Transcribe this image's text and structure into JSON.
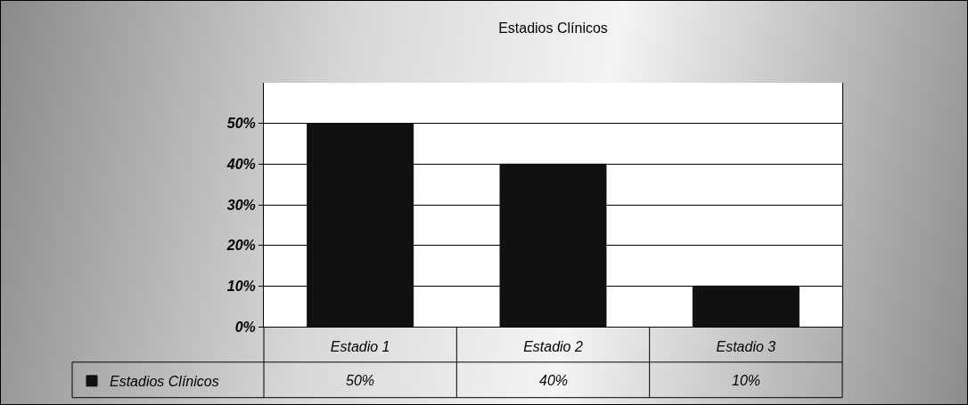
{
  "chart_data": {
    "type": "bar",
    "title": "Estadios Clínicos",
    "categories": [
      "Estadio 1",
      "Estadio 2",
      "Estadio 3"
    ],
    "series": [
      {
        "name": "Estadios Clínicos",
        "color": "#111111",
        "values": [
          50,
          40,
          10
        ]
      }
    ],
    "value_labels": [
      "50%",
      "40%",
      "10%"
    ],
    "ylim": [
      0,
      60
    ],
    "yticks": [
      {
        "value": 0,
        "label": "0%"
      },
      {
        "value": 10,
        "label": "10%"
      },
      {
        "value": 20,
        "label": "20%"
      },
      {
        "value": 30,
        "label": "30%"
      },
      {
        "value": 40,
        "label": "40%"
      },
      {
        "value": 50,
        "label": "50%"
      }
    ],
    "grid": "y",
    "legend": "bottom left"
  }
}
